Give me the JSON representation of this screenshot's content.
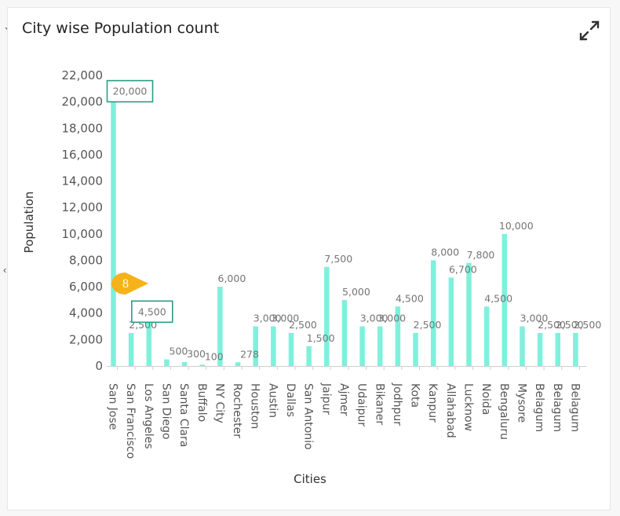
{
  "widget": {
    "title": "City wise Population count",
    "expand_icon": "expand-arrows-icon",
    "colors": {
      "bar": "#7ff0dc",
      "highlight_box": "#2a9d86",
      "marker": "#f5b21a"
    }
  },
  "marker": {
    "label": "8"
  },
  "chart_data": {
    "type": "bar",
    "title": "City wise Population count",
    "xlabel": "Cities",
    "ylabel": "Population",
    "ylim": [
      0,
      22000
    ],
    "yticks": [
      0,
      2000,
      4000,
      6000,
      8000,
      10000,
      12000,
      14000,
      16000,
      18000,
      20000,
      22000
    ],
    "ytick_labels": [
      "0",
      "2,000",
      "4,000",
      "6,000",
      "8,000",
      "10,000",
      "12,000",
      "14,000",
      "16,000",
      "18,000",
      "20,000",
      "22,000"
    ],
    "grid": false,
    "legend": "none",
    "categories": [
      "San Jose",
      "San Francisco",
      "Los Angeles",
      "San Diego",
      "Santa Clara",
      "Buffalo",
      "NY City",
      "Rochester",
      "Houston",
      "Austin",
      "Dallas",
      "San Antonio",
      "Jaipur",
      "Ajmer",
      "Udaipur",
      "Bikaner",
      "Jodhpur",
      "Kota",
      "Kanpur",
      "Allahabad",
      "Lucknow",
      "Noida",
      "Bengaluru",
      "Mysore",
      "Belagum",
      "Belagum",
      "Belagum"
    ],
    "values": [
      20000,
      2500,
      4500,
      500,
      300,
      100,
      6000,
      278,
      3000,
      3000,
      2500,
      1500,
      7500,
      5000,
      3000,
      3000,
      4500,
      2500,
      8000,
      6700,
      7800,
      4500,
      10000,
      3000,
      2500,
      2500,
      2500
    ],
    "value_labels": [
      "20,000",
      "2,500",
      "4,500",
      "500",
      "300",
      "100",
      "6,000",
      "278",
      "3,000",
      "3,000",
      "2,500",
      "1,500",
      "7,500",
      "5,000",
      "3,000",
      "3,000",
      "4,500",
      "2,500",
      "8,000",
      "6,700",
      "7,800",
      "4,500",
      "10,000",
      "3,000",
      "2,500",
      "2,500",
      "2,500"
    ],
    "highlighted": [
      "San Jose",
      "Los Angeles"
    ]
  }
}
